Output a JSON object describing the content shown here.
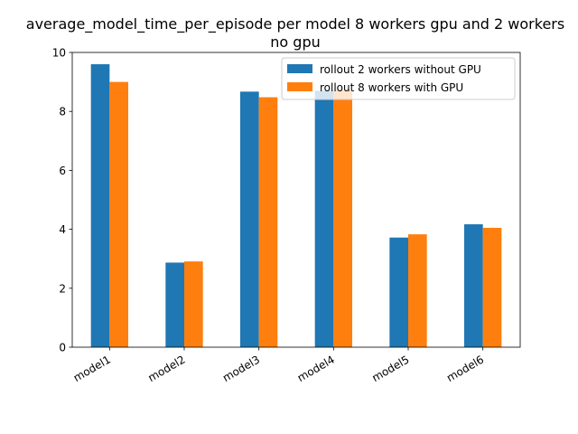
{
  "chart_data": {
    "type": "bar",
    "title_lines": [
      "average_model_time_per_episode per model 8 workers gpu and 2 workers",
      "no gpu"
    ],
    "categories": [
      "model1",
      "model2",
      "model3",
      "model4",
      "model5",
      "model6"
    ],
    "series": [
      {
        "name": "rollout 2 workers without GPU",
        "color": "#1f77b4",
        "values": [
          9.6,
          2.87,
          8.67,
          8.7,
          3.72,
          4.17
        ]
      },
      {
        "name": "rollout 8 workers with GPU",
        "color": "#ff7f0e",
        "values": [
          9.0,
          2.91,
          8.48,
          8.73,
          3.83,
          4.05
        ]
      }
    ],
    "ylim": [
      0,
      10
    ],
    "yticks": [
      "0",
      "2",
      "4",
      "6",
      "8",
      "10"
    ],
    "xlabel": "",
    "ylabel": "",
    "grid": false,
    "legend_position": "upper right",
    "xtick_rotation": "30 degrees"
  }
}
